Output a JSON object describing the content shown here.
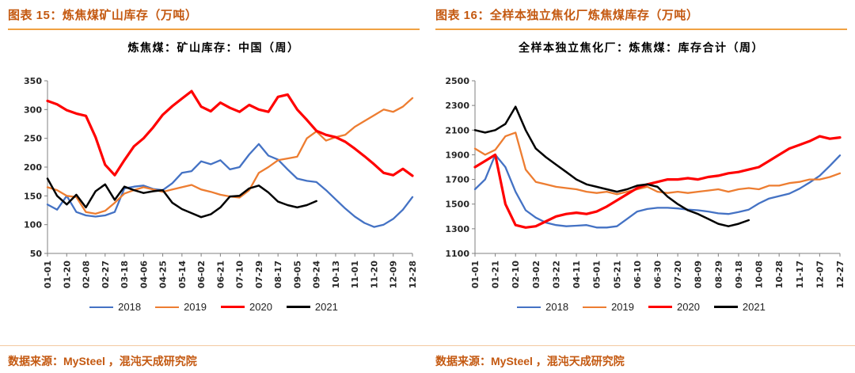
{
  "colors": {
    "accent_header": "#C45911",
    "header_rule": "#F0A142",
    "footer_rule": "#F3C9A0",
    "axis": "#808080",
    "tick_label": "#262626"
  },
  "legend_years": [
    "2018",
    "2019",
    "2020",
    "2021"
  ],
  "chart_data": [
    {
      "type": "line",
      "figure_label": "图表 15：炼焦煤矿山库存（万吨）",
      "title": "炼焦煤：矿山库存：中国（周）",
      "source": "数据来源：MySteel ，混沌天成研究院",
      "ylabel": "",
      "xlabel": "",
      "ylim": [
        50,
        350
      ],
      "ytick_step": 50,
      "grid": false,
      "legend_position": "bottom",
      "points_per_tick": 2,
      "x_labels": [
        "01-01",
        "01-20",
        "02-08",
        "02-27",
        "03-18",
        "04-06",
        "04-25",
        "05-14",
        "06-02",
        "06-21",
        "07-10",
        "07-29",
        "08-17",
        "09-05",
        "09-24",
        "10-13",
        "11-01",
        "11-20",
        "12-09",
        "12-28"
      ],
      "series": [
        {
          "name": "2018",
          "color": "#4472C4",
          "width": 2.3,
          "values": [
            135,
            126,
            150,
            122,
            116,
            114,
            116,
            122,
            163,
            166,
            168,
            162,
            160,
            172,
            190,
            193,
            210,
            205,
            212,
            196,
            200,
            222,
            240,
            220,
            213,
            196,
            180,
            176,
            174,
            160,
            144,
            128,
            114,
            103,
            96,
            100,
            110,
            126,
            148
          ]
        },
        {
          "name": "2019",
          "color": "#ED7D31",
          "width": 2.3,
          "values": [
            165,
            160,
            150,
            148,
            122,
            119,
            124,
            138,
            154,
            160,
            165,
            161,
            157,
            161,
            165,
            169,
            161,
            157,
            152,
            149,
            147,
            160,
            190,
            200,
            212,
            215,
            218,
            250,
            262,
            246,
            252,
            256,
            270,
            280,
            290,
            300,
            296,
            305,
            320
          ]
        },
        {
          "name": "2020",
          "color": "#FF0000",
          "width": 3.2,
          "values": [
            315,
            309,
            299,
            293,
            289,
            252,
            204,
            186,
            212,
            236,
            250,
            269,
            291,
            306,
            319,
            332,
            305,
            297,
            312,
            303,
            296,
            308,
            300,
            296,
            322,
            326,
            300,
            282,
            263,
            256,
            252,
            244,
            232,
            219,
            205,
            190,
            186,
            197,
            185
          ]
        },
        {
          "name": "2021",
          "color": "#000000",
          "width": 2.5,
          "values": [
            180,
            150,
            135,
            152,
            130,
            158,
            170,
            143,
            166,
            160,
            155,
            158,
            160,
            138,
            127,
            120,
            113,
            118,
            130,
            149,
            150,
            163,
            168,
            156,
            140,
            134,
            130,
            134,
            141
          ]
        }
      ]
    },
    {
      "type": "line",
      "figure_label": "图表 16：全样本独立焦化厂炼焦煤库存（万吨）",
      "title": "全样本独立焦化厂：炼焦煤：库存合计（周）",
      "source": "数据来源：MySteel ，混沌天成研究院",
      "ylabel": "",
      "xlabel": "",
      "ylim": [
        1100,
        2500
      ],
      "ytick_step": 200,
      "grid": false,
      "legend_position": "bottom",
      "points_per_tick": 2,
      "x_labels": [
        "01-01",
        "01-21",
        "02-10",
        "03-02",
        "03-22",
        "04-11",
        "05-01",
        "05-21",
        "06-10",
        "06-30",
        "07-20",
        "08-09",
        "08-29",
        "09-18",
        "10-08",
        "10-28",
        "11-17",
        "12-07",
        "12-27"
      ],
      "series": [
        {
          "name": "2018",
          "color": "#4472C4",
          "width": 2.3,
          "values": [
            1620,
            1700,
            1900,
            1800,
            1600,
            1450,
            1390,
            1350,
            1330,
            1320,
            1325,
            1330,
            1310,
            1310,
            1320,
            1380,
            1440,
            1460,
            1470,
            1470,
            1465,
            1455,
            1450,
            1440,
            1425,
            1420,
            1435,
            1455,
            1505,
            1545,
            1565,
            1585,
            1625,
            1675,
            1730,
            1810,
            1895
          ]
        },
        {
          "name": "2019",
          "color": "#ED7D31",
          "width": 2.3,
          "values": [
            1950,
            1900,
            1940,
            2050,
            2080,
            1780,
            1680,
            1660,
            1640,
            1630,
            1620,
            1600,
            1590,
            1600,
            1580,
            1600,
            1620,
            1640,
            1600,
            1590,
            1600,
            1590,
            1600,
            1610,
            1620,
            1600,
            1620,
            1630,
            1620,
            1650,
            1650,
            1670,
            1680,
            1700,
            1700,
            1720,
            1750
          ]
        },
        {
          "name": "2020",
          "color": "#FF0000",
          "width": 3.2,
          "values": [
            1800,
            1850,
            1900,
            1500,
            1330,
            1310,
            1320,
            1360,
            1400,
            1420,
            1430,
            1420,
            1440,
            1480,
            1530,
            1580,
            1630,
            1660,
            1680,
            1700,
            1700,
            1710,
            1700,
            1720,
            1730,
            1750,
            1760,
            1780,
            1800,
            1850,
            1900,
            1950,
            1980,
            2010,
            2050,
            2030,
            2040
          ]
        },
        {
          "name": "2021",
          "color": "#000000",
          "width": 2.5,
          "values": [
            2100,
            2080,
            2100,
            2150,
            2290,
            2100,
            1950,
            1880,
            1820,
            1760,
            1700,
            1660,
            1640,
            1620,
            1600,
            1620,
            1650,
            1660,
            1640,
            1560,
            1500,
            1450,
            1420,
            1380,
            1340,
            1320,
            1340,
            1370
          ]
        }
      ]
    }
  ]
}
